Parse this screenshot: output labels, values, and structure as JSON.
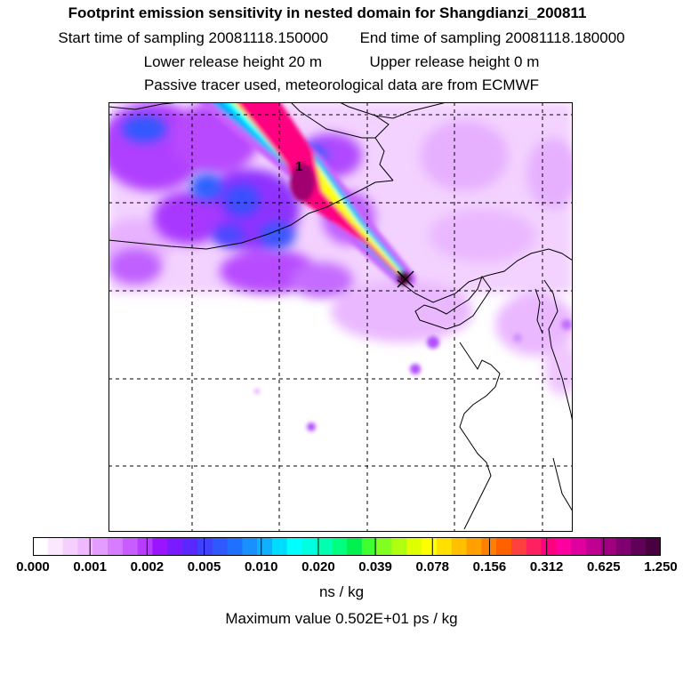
{
  "header": {
    "title": "Footprint emission sensitivity in nested domain for Shangdianzi_200811",
    "start_label": "Start time of sampling",
    "start_value": "20081118.150000",
    "end_label": "End time of sampling",
    "end_value": "20081118.180000",
    "lower_label": "Lower release height",
    "lower_value": "20 m",
    "upper_label": "Upper release height",
    "upper_value": "0 m",
    "tracer_note": "Passive tracer used, meteorological data are from ECMWF"
  },
  "map": {
    "marker_label": "1",
    "plume_colors": [
      "#cc00ff",
      "#0080ff",
      "#00ffff",
      "#00ff80",
      "#ffff00",
      "#ff8000",
      "#ff0080",
      "#a0005a",
      "#500030"
    ],
    "background_purple": "#a000ff",
    "background_light": "#f0c0ff"
  },
  "colorbar": {
    "ticks": [
      "0.000",
      "0.001",
      "0.002",
      "0.005",
      "0.010",
      "0.020",
      "0.039",
      "0.078",
      "0.156",
      "0.312",
      "0.625",
      "1.250"
    ],
    "unit": "ns / kg",
    "colors": [
      "#ffffff",
      "#fbe8ff",
      "#f5d0ff",
      "#efb8ff",
      "#e59cff",
      "#d67cff",
      "#c85cff",
      "#b83cff",
      "#9a14ff",
      "#7a1aff",
      "#5a28ff",
      "#4040ff",
      "#3058ff",
      "#2070ff",
      "#1890ff",
      "#10b0ff",
      "#00dcff",
      "#00ffff",
      "#00ffe0",
      "#00ffb0",
      "#00ff80",
      "#00f050",
      "#40ff30",
      "#80ff20",
      "#b0ff10",
      "#e0ff00",
      "#ffff00",
      "#ffe000",
      "#ffc000",
      "#ffa000",
      "#ff8000",
      "#ff6000",
      "#ff4040",
      "#ff2060",
      "#ff0080",
      "#ff00a0",
      "#e000a0",
      "#c00090",
      "#a00080",
      "#800070",
      "#600058",
      "#480040"
    ]
  },
  "footer": {
    "max_value": "Maximum value  0.502E+01 ps / kg"
  }
}
